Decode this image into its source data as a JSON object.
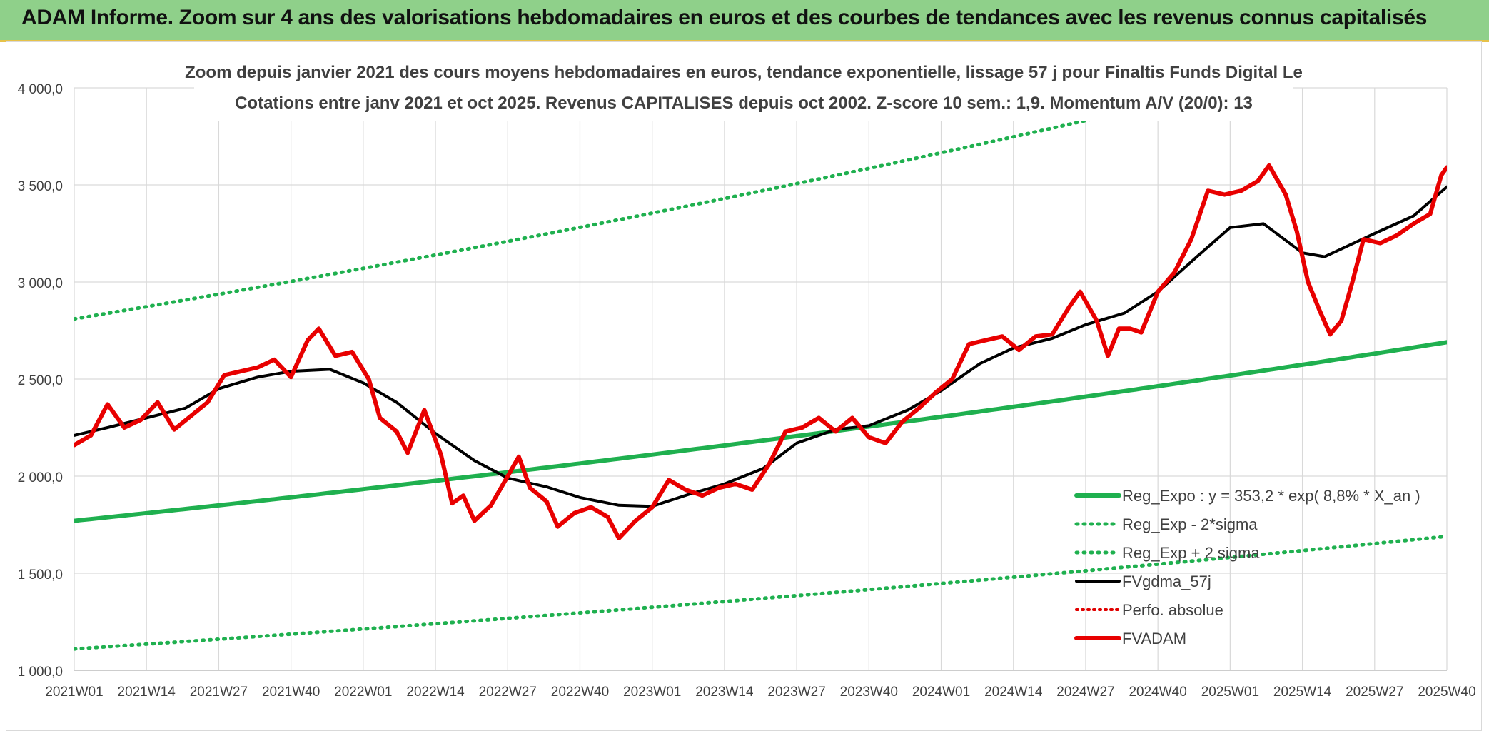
{
  "banner": {
    "title": "ADAM Informe. Zoom sur 4 ans des valorisations hebdomadaires en euros et des courbes de tendances avec les revenus connus capitalisés"
  },
  "chart_data": {
    "type": "line",
    "title_line1": "Zoom depuis janvier 2021 des cours moyens hebdomadaires en euros, tendance exponentielle, lissage 57 j pour Finaltis Funds Digital Le",
    "title_line2": "Cotations entre janv 2021 et oct 2025. Revenus CAPITALISES depuis oct 2002. Z-score 10 sem.: 1,9. Momentum A/V (20/0): 13",
    "xlabel": "",
    "ylabel": "",
    "ylim": [
      1000,
      4000
    ],
    "yticks": [
      "1 000,0",
      "1 500,0",
      "2 000,0",
      "2 500,0",
      "3 000,0",
      "3 500,0",
      "4 000,0"
    ],
    "ytick_values": [
      1000,
      1500,
      2000,
      2500,
      3000,
      3500,
      4000
    ],
    "xticks": [
      "2021W01",
      "2021W14",
      "2021W27",
      "2021W40",
      "2022W01",
      "2022W14",
      "2022W27",
      "2022W40",
      "2023W01",
      "2023W14",
      "2023W27",
      "2023W40",
      "2024W01",
      "2024W14",
      "2024W27",
      "2024W40",
      "2025W01",
      "2025W14",
      "2025W27",
      "2025W40"
    ],
    "xtick_index": [
      0,
      13,
      26,
      39,
      52,
      65,
      78,
      91,
      104,
      117,
      130,
      143,
      156,
      169,
      182,
      195,
      208,
      221,
      234,
      247
    ],
    "grid": true,
    "legend_position": "bottom-right",
    "colors": {
      "reg": "#1fb04f",
      "band": "#1fb04f",
      "fvgdma": "#000000",
      "perfo": "#e00000",
      "fvadam": "#e80000"
    },
    "series": [
      {
        "name": "Reg_Expo : y = 353,2 * exp( 8,8% *  X_an )",
        "style": "solid-green",
        "values_start": 1770,
        "values_end": 2690
      },
      {
        "name": "Reg_Exp - 2*sigma",
        "style": "dotted-green",
        "values_start": 1110,
        "values_end": 1690
      },
      {
        "name": "Reg_Exp + 2 sigma",
        "style": "dotted-green",
        "values_start": 2810,
        "values_end": 4280
      },
      {
        "name": "FVgdma_57j",
        "style": "solid-black",
        "points": [
          [
            0,
            2210
          ],
          [
            6,
            2250
          ],
          [
            13,
            2300
          ],
          [
            20,
            2350
          ],
          [
            26,
            2450
          ],
          [
            33,
            2510
          ],
          [
            39,
            2540
          ],
          [
            46,
            2550
          ],
          [
            52,
            2480
          ],
          [
            58,
            2380
          ],
          [
            65,
            2220
          ],
          [
            72,
            2080
          ],
          [
            78,
            1990
          ],
          [
            85,
            1945
          ],
          [
            91,
            1890
          ],
          [
            98,
            1850
          ],
          [
            104,
            1845
          ],
          [
            111,
            1910
          ],
          [
            117,
            1960
          ],
          [
            124,
            2040
          ],
          [
            130,
            2170
          ],
          [
            137,
            2240
          ],
          [
            143,
            2260
          ],
          [
            150,
            2340
          ],
          [
            156,
            2440
          ],
          [
            163,
            2580
          ],
          [
            169,
            2660
          ],
          [
            176,
            2710
          ],
          [
            182,
            2780
          ],
          [
            189,
            2840
          ],
          [
            195,
            2950
          ],
          [
            202,
            3130
          ],
          [
            208,
            3280
          ],
          [
            214,
            3300
          ],
          [
            221,
            3150
          ],
          [
            225,
            3130
          ],
          [
            234,
            3250
          ],
          [
            241,
            3340
          ],
          [
            247,
            3490
          ]
        ]
      },
      {
        "name": "Perfo. absolue",
        "style": "dotted-red",
        "points": []
      },
      {
        "name": "FVADAM",
        "style": "solid-red",
        "points": [
          [
            0,
            2160
          ],
          [
            3,
            2210
          ],
          [
            6,
            2370
          ],
          [
            9,
            2250
          ],
          [
            12,
            2290
          ],
          [
            15,
            2380
          ],
          [
            18,
            2240
          ],
          [
            21,
            2310
          ],
          [
            24,
            2380
          ],
          [
            27,
            2520
          ],
          [
            30,
            2540
          ],
          [
            33,
            2560
          ],
          [
            36,
            2600
          ],
          [
            39,
            2510
          ],
          [
            42,
            2700
          ],
          [
            44,
            2760
          ],
          [
            47,
            2620
          ],
          [
            50,
            2640
          ],
          [
            53,
            2500
          ],
          [
            55,
            2300
          ],
          [
            58,
            2230
          ],
          [
            60,
            2120
          ],
          [
            63,
            2340
          ],
          [
            66,
            2110
          ],
          [
            68,
            1860
          ],
          [
            70,
            1900
          ],
          [
            72,
            1770
          ],
          [
            75,
            1850
          ],
          [
            78,
            2000
          ],
          [
            80,
            2100
          ],
          [
            82,
            1940
          ],
          [
            85,
            1870
          ],
          [
            87,
            1740
          ],
          [
            90,
            1810
          ],
          [
            93,
            1840
          ],
          [
            96,
            1790
          ],
          [
            98,
            1680
          ],
          [
            101,
            1770
          ],
          [
            104,
            1840
          ],
          [
            107,
            1980
          ],
          [
            110,
            1930
          ],
          [
            113,
            1900
          ],
          [
            116,
            1940
          ],
          [
            119,
            1960
          ],
          [
            122,
            1930
          ],
          [
            125,
            2060
          ],
          [
            128,
            2230
          ],
          [
            131,
            2250
          ],
          [
            134,
            2300
          ],
          [
            137,
            2230
          ],
          [
            140,
            2300
          ],
          [
            143,
            2200
          ],
          [
            146,
            2170
          ],
          [
            149,
            2280
          ],
          [
            152,
            2350
          ],
          [
            155,
            2430
          ],
          [
            158,
            2500
          ],
          [
            161,
            2680
          ],
          [
            164,
            2700
          ],
          [
            167,
            2720
          ],
          [
            170,
            2650
          ],
          [
            173,
            2720
          ],
          [
            176,
            2730
          ],
          [
            179,
            2870
          ],
          [
            181,
            2950
          ],
          [
            184,
            2800
          ],
          [
            186,
            2620
          ],
          [
            188,
            2760
          ],
          [
            190,
            2760
          ],
          [
            192,
            2740
          ],
          [
            195,
            2950
          ],
          [
            198,
            3050
          ],
          [
            201,
            3220
          ],
          [
            204,
            3470
          ],
          [
            207,
            3450
          ],
          [
            210,
            3470
          ],
          [
            213,
            3520
          ],
          [
            215,
            3600
          ],
          [
            218,
            3450
          ],
          [
            220,
            3260
          ],
          [
            222,
            3000
          ],
          [
            224,
            2860
          ],
          [
            226,
            2730
          ],
          [
            228,
            2800
          ],
          [
            230,
            3000
          ],
          [
            232,
            3220
          ],
          [
            235,
            3200
          ],
          [
            238,
            3240
          ],
          [
            241,
            3300
          ],
          [
            244,
            3350
          ],
          [
            246,
            3550
          ],
          [
            247,
            3590
          ]
        ]
      }
    ]
  }
}
